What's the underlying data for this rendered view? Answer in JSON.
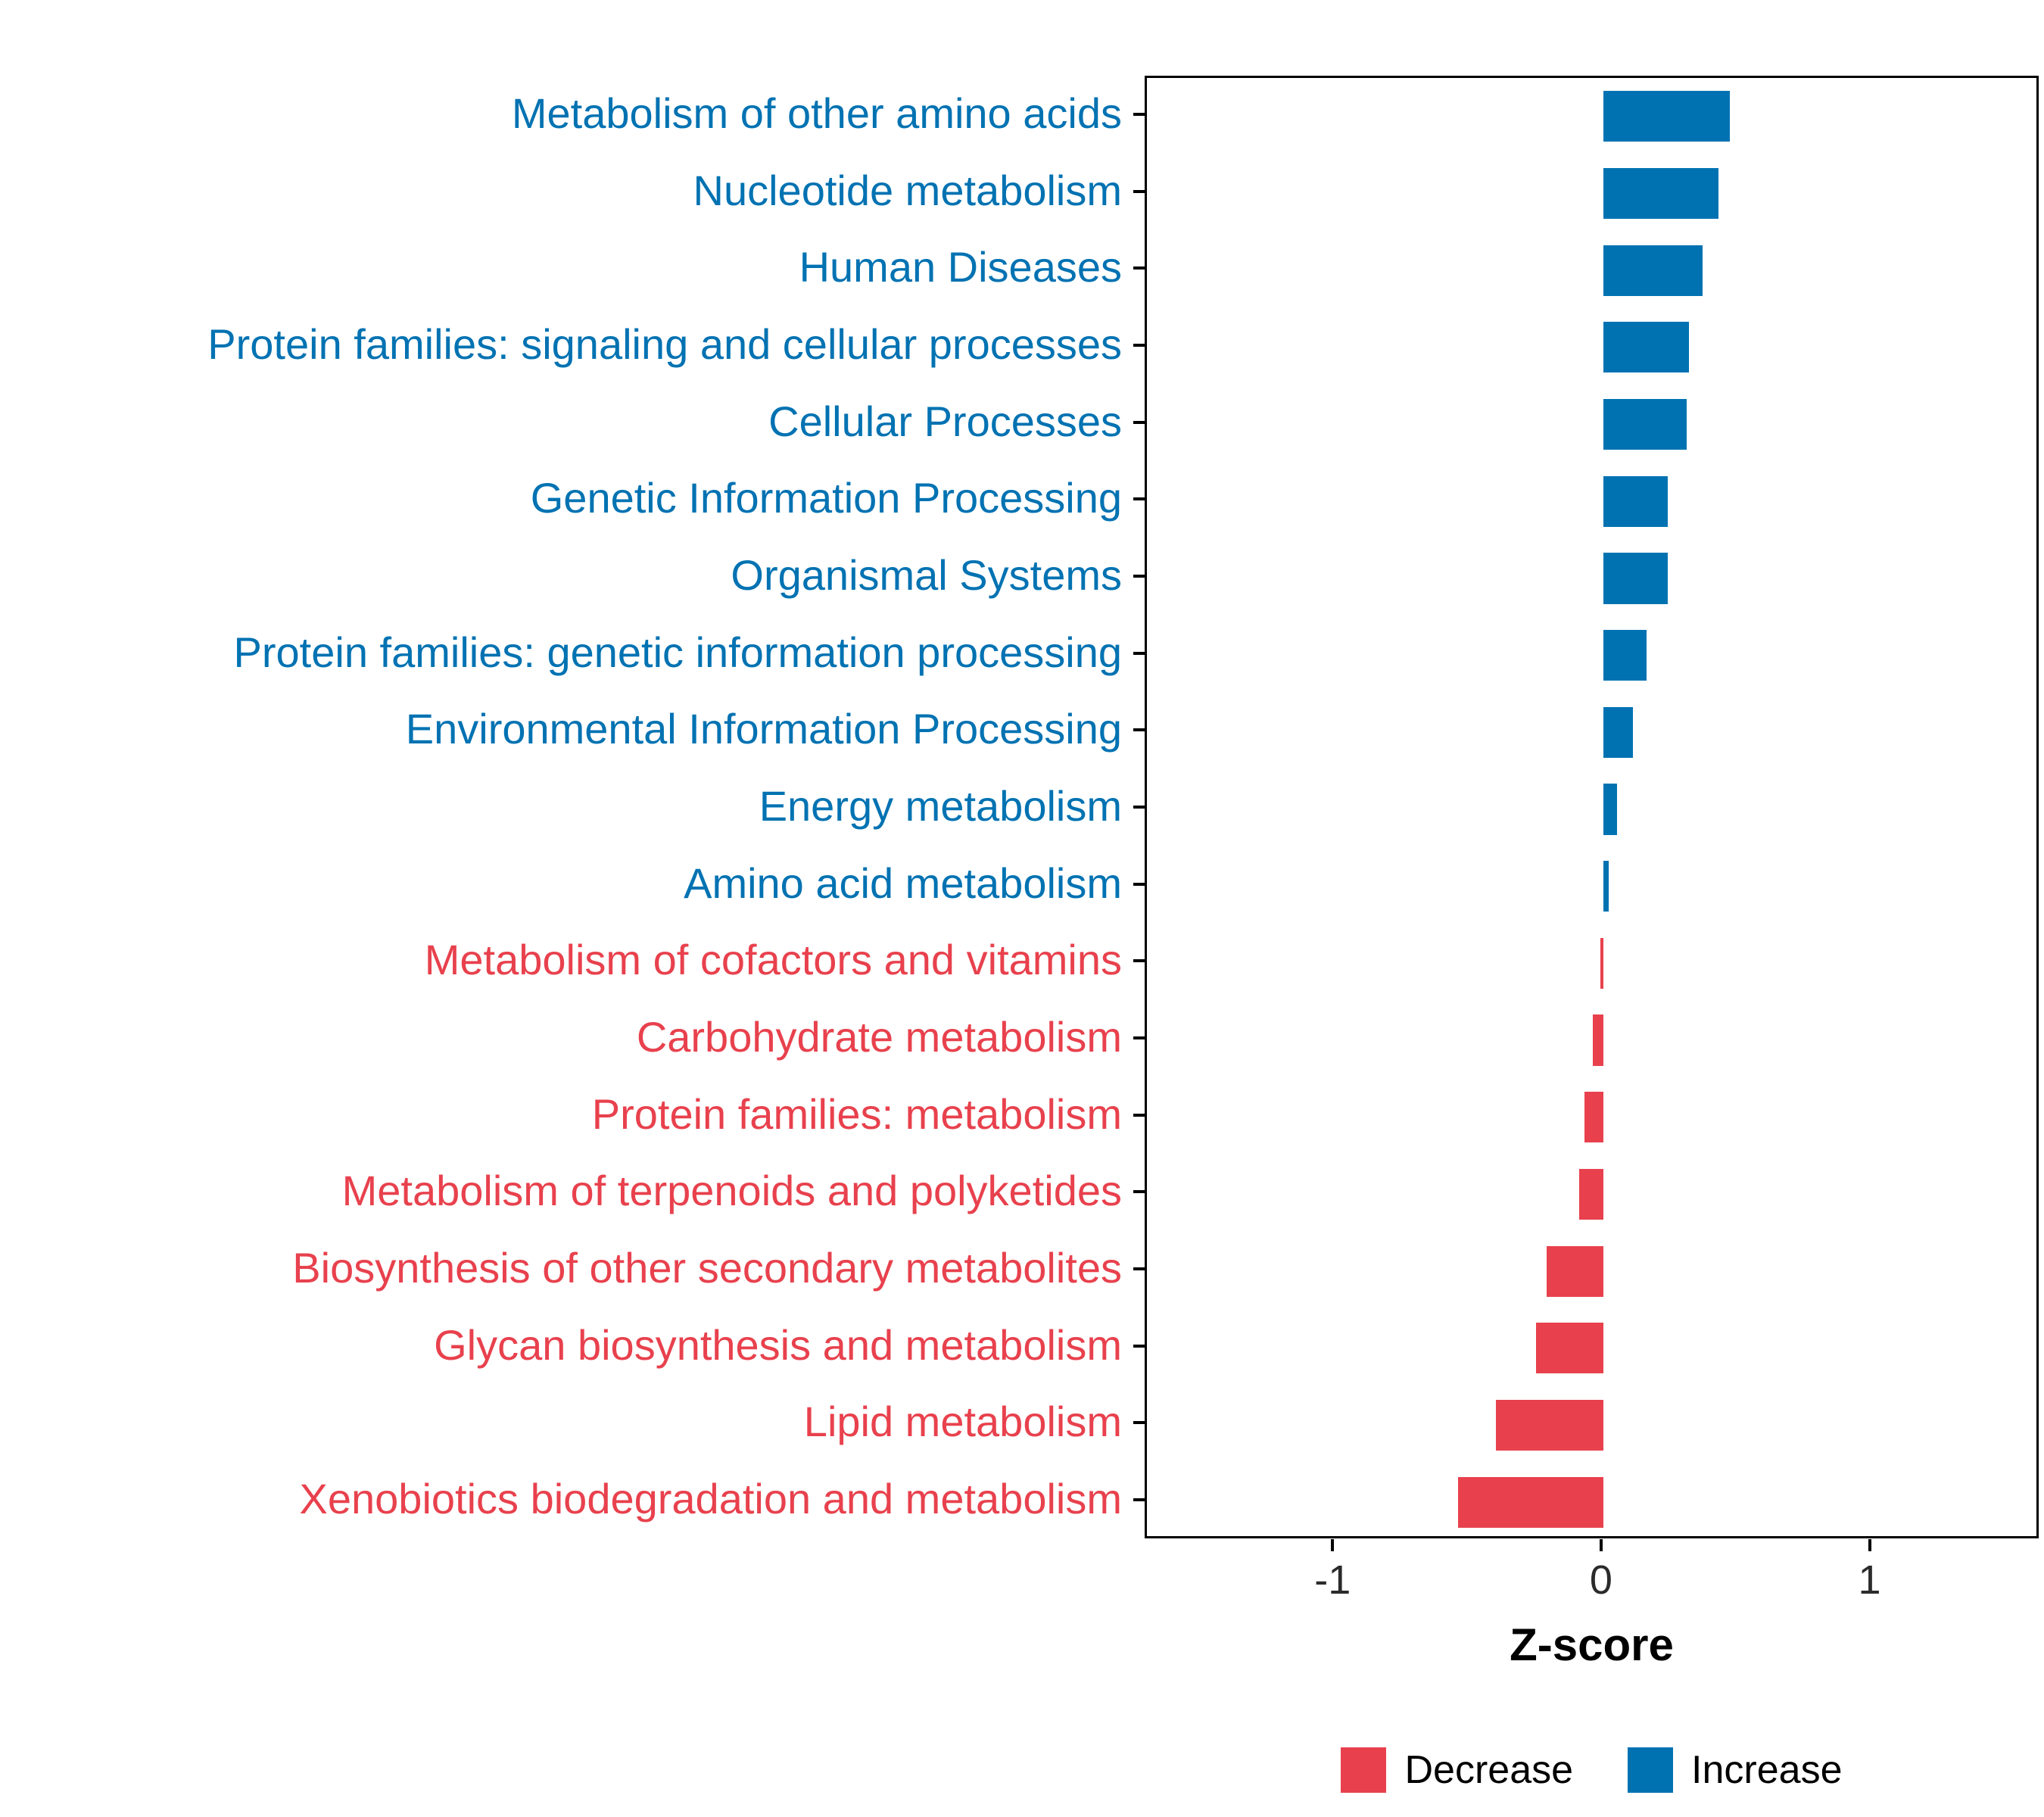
{
  "chart_data": {
    "type": "bar",
    "orientation": "horizontal",
    "title": "",
    "xlabel": "Z-score",
    "ylabel": "",
    "xlim": [
      -1.7,
      1.63
    ],
    "x_ticks": [
      -1,
      0,
      1
    ],
    "x_tick_labels": [
      "-1",
      "0",
      "1"
    ],
    "grid": false,
    "legend_position": "bottom",
    "categories": [
      "Metabolism of other amino acids",
      "Nucleotide metabolism",
      "Human Diseases",
      "Protein families: signaling and cellular processes",
      "Cellular Processes",
      "Genetic Information Processing",
      "Organismal Systems",
      "Protein families: genetic information processing",
      "Environmental Information Processing",
      "Energy metabolism",
      "Amino acid metabolism",
      "Metabolism of cofactors and vitamins",
      "Carbohydrate metabolism",
      "Protein families: metabolism",
      "Metabolism of terpenoids and polyketides",
      "Biosynthesis of other secondary metabolites",
      "Glycan biosynthesis and metabolism",
      "Lipid metabolism",
      "Xenobiotics biodegradation and metabolism"
    ],
    "values": [
      0.47,
      0.43,
      0.37,
      0.32,
      0.31,
      0.24,
      0.24,
      0.16,
      0.11,
      0.05,
      0.02,
      -0.01,
      -0.04,
      -0.07,
      -0.09,
      -0.21,
      -0.25,
      -0.4,
      -0.54
    ],
    "directions": [
      "Increase",
      "Increase",
      "Increase",
      "Increase",
      "Increase",
      "Increase",
      "Increase",
      "Increase",
      "Increase",
      "Increase",
      "Increase",
      "Decrease",
      "Decrease",
      "Decrease",
      "Decrease",
      "Decrease",
      "Decrease",
      "Decrease",
      "Decrease"
    ],
    "legend": [
      {
        "label": "Decrease",
        "color": "#E8414D"
      },
      {
        "label": "Increase",
        "color": "#0072B2"
      }
    ]
  },
  "colors": {
    "increase": "#0072B2",
    "decrease": "#E8414D",
    "axis_text": "#2b2b2b",
    "panel_border": "#000000",
    "background": "#ffffff"
  }
}
